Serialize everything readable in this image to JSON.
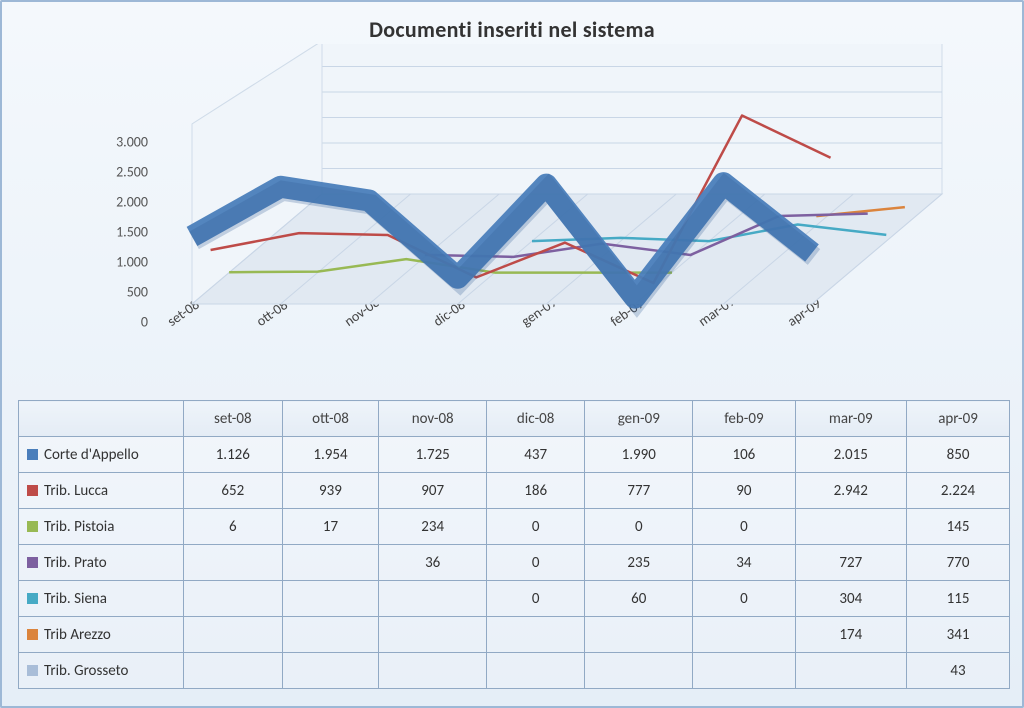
{
  "title": "Documenti inseriti nel sistema",
  "chart": {
    "type": "line-3d",
    "categories": [
      "set-08",
      "ott-08",
      "nov-08",
      "dic-08",
      "gen-09",
      "feb-09",
      "mar-09",
      "apr-09"
    ],
    "ylim": [
      0,
      3000
    ],
    "ytick_step": 500,
    "ytick_labels": [
      "0",
      "500",
      "1.000",
      "1.500",
      "2.000",
      "2.500",
      "3.000"
    ],
    "background_color": "#eaf2f8",
    "floor_color": "#e1e9f2",
    "wall_color": "#f0f5fa",
    "grid_color": "#c9d6e6",
    "axis_fontsize": 14,
    "title_fontsize": 22,
    "perspective": {
      "skew_x": 130,
      "skew_y": 110,
      "depth_rows": 7
    },
    "series": [
      {
        "name": "Corte d'Appello",
        "color": "#4a7ebb",
        "values": [
          1126,
          1954,
          1725,
          437,
          1990,
          106,
          2015,
          850
        ],
        "display": [
          "1.126",
          "1.954",
          "1.725",
          "437",
          "1.990",
          "106",
          "2.015",
          "850"
        ]
      },
      {
        "name": "Trib. Lucca",
        "color": "#be4b48",
        "values": [
          652,
          939,
          907,
          186,
          777,
          90,
          2942,
          2224
        ],
        "display": [
          "652",
          "939",
          "907",
          "186",
          "777",
          "90",
          "2.942",
          "2.224"
        ]
      },
      {
        "name": "Trib. Pistoia",
        "color": "#98b954",
        "values": [
          6,
          17,
          234,
          0,
          0,
          0,
          null,
          145
        ],
        "display": [
          "6",
          "17",
          "234",
          "0",
          "0",
          "0",
          "",
          "145"
        ]
      },
      {
        "name": "Trib. Prato",
        "color": "#7d60a0",
        "values": [
          null,
          null,
          36,
          0,
          235,
          34,
          727,
          770
        ],
        "display": [
          "",
          "",
          "36",
          "0",
          "235",
          "34",
          "727",
          "770"
        ]
      },
      {
        "name": "Trib. Siena",
        "color": "#46aac5",
        "values": [
          null,
          null,
          null,
          0,
          60,
          0,
          304,
          115
        ],
        "display": [
          "",
          "",
          "",
          "0",
          "60",
          "0",
          "304",
          "115"
        ]
      },
      {
        "name": "Trib Arezzo",
        "color": "#db843d",
        "values": [
          null,
          null,
          null,
          null,
          null,
          null,
          174,
          341
        ],
        "display": [
          "",
          "",
          "",
          "",
          "",
          "",
          "174",
          "341"
        ]
      },
      {
        "name": "Trib. Grosseto",
        "color": "#a9bdd8",
        "values": [
          null,
          null,
          null,
          null,
          null,
          null,
          null,
          43
        ],
        "display": [
          "",
          "",
          "",
          "",
          "",
          "",
          "",
          "43"
        ]
      }
    ]
  },
  "table": {
    "header_blank": "",
    "col_width_series": 156
  }
}
